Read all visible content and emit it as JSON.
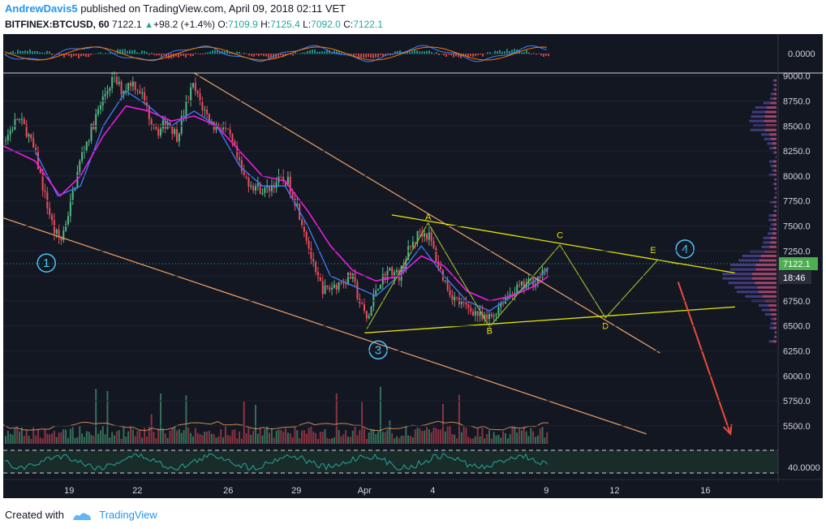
{
  "header": {
    "author": "AndrewDavis5",
    "published_text": " published on TradingView.com, April 09, 2018 02:11 VET",
    "symbol": "BITFINEX:BTCUSD, 60",
    "last": "7122.1",
    "change": "+98.2 (+1.4%)",
    "o_label": "O:",
    "o_value": "7109.9",
    "h_label": "H:",
    "h_value": "7125.4",
    "l_label": "L:",
    "l_value": "7092.0",
    "c_label": "C:",
    "c_value": "7122.1"
  },
  "footer": {
    "created_with": "Created with",
    "brand": "TradingView"
  },
  "colors": {
    "background": "#131722",
    "up": "#53b987",
    "down": "#eb4d5c",
    "ema_fast": "#3f7fff",
    "ema_slow": "#e91ee3",
    "channel": "#f0a468",
    "triangle": "#e6e600",
    "projection": "#9ab32e",
    "arrow": "#e74c3c",
    "volume_profile": "#7b68ee",
    "price_tag": "#4caf50"
  },
  "chart_data": {
    "type": "candlestick",
    "title": "",
    "symbol": "BITFINEX:BTCUSD",
    "interval": "60",
    "last_price": 7122.1,
    "last_price_label": "7122.1",
    "countdown_label": "18:46",
    "x_ticks": [
      "19",
      "22",
      "26",
      "29",
      "Apr",
      "4",
      "9",
      "12",
      "16"
    ],
    "x_tick_days": [
      19,
      22,
      26,
      29,
      32,
      35,
      40,
      43,
      47
    ],
    "y_ticks": [
      "9000.0",
      "8750.0",
      "8500.0",
      "8250.0",
      "8000.0",
      "7750.0",
      "7500.0",
      "7250.0",
      "7000.0",
      "6750.0",
      "6500.0",
      "6250.0",
      "6000.0",
      "5750.0",
      "5500.0"
    ],
    "y_tick_values": [
      9000,
      8750,
      8500,
      8250,
      8000,
      7750,
      7500,
      7250,
      7000,
      6750,
      6500,
      6250,
      6000,
      5750,
      5500
    ],
    "ylim": [
      5280,
      9030
    ],
    "xlim": [
      16.1,
      50.2
    ],
    "price_path": [
      [
        16.1,
        8350
      ],
      [
        16.7,
        8580
      ],
      [
        17.1,
        8450
      ],
      [
        17.5,
        8200
      ],
      [
        17.9,
        7800
      ],
      [
        18.3,
        7450
      ],
      [
        18.6,
        7350
      ],
      [
        19.0,
        7700
      ],
      [
        19.5,
        8200
      ],
      [
        20.0,
        8500
      ],
      [
        20.5,
        8800
      ],
      [
        20.9,
        8980
      ],
      [
        21.3,
        8850
      ],
      [
        21.7,
        8950
      ],
      [
        22.1,
        8850
      ],
      [
        22.5,
        8600
      ],
      [
        22.9,
        8450
      ],
      [
        23.3,
        8550
      ],
      [
        23.7,
        8400
      ],
      [
        24.1,
        8700
      ],
      [
        24.4,
        8900
      ],
      [
        24.8,
        8700
      ],
      [
        25.3,
        8500
      ],
      [
        25.7,
        8500
      ],
      [
        26.1,
        8350
      ],
      [
        26.6,
        8000
      ],
      [
        27.1,
        7900
      ],
      [
        27.6,
        7850
      ],
      [
        28.1,
        7950
      ],
      [
        28.6,
        7950
      ],
      [
        29.0,
        7700
      ],
      [
        29.4,
        7400
      ],
      [
        29.8,
        7000
      ],
      [
        30.2,
        6850
      ],
      [
        30.6,
        6900
      ],
      [
        31.0,
        6950
      ],
      [
        31.4,
        7000
      ],
      [
        31.8,
        6700
      ],
      [
        32.1,
        6550
      ],
      [
        32.5,
        6900
      ],
      [
        33.0,
        7050
      ],
      [
        33.5,
        7000
      ],
      [
        33.9,
        7250
      ],
      [
        34.4,
        7450
      ],
      [
        34.8,
        7400
      ],
      [
        35.3,
        7050
      ],
      [
        35.8,
        6800
      ],
      [
        36.3,
        6700
      ],
      [
        36.8,
        6650
      ],
      [
        37.2,
        6550
      ],
      [
        37.6,
        6600
      ],
      [
        38.0,
        6750
      ],
      [
        38.5,
        6850
      ],
      [
        39.0,
        6900
      ],
      [
        39.4,
        6950
      ],
      [
        39.7,
        7000
      ],
      [
        40.0,
        7050
      ],
      [
        40.1,
        7122.1
      ]
    ],
    "ema_fast": [
      [
        16.1,
        8250
      ],
      [
        17.5,
        8250
      ],
      [
        18.5,
        7800
      ],
      [
        19.5,
        7900
      ],
      [
        20.5,
        8500
      ],
      [
        21.5,
        8850
      ],
      [
        22.5,
        8700
      ],
      [
        23.5,
        8500
      ],
      [
        24.5,
        8650
      ],
      [
        25.5,
        8500
      ],
      [
        26.5,
        8100
      ],
      [
        27.5,
        7900
      ],
      [
        28.5,
        7900
      ],
      [
        29.5,
        7500
      ],
      [
        30.5,
        7000
      ],
      [
        31.5,
        6900
      ],
      [
        32.5,
        6800
      ],
      [
        33.5,
        7000
      ],
      [
        34.5,
        7300
      ],
      [
        35.5,
        7000
      ],
      [
        36.5,
        6750
      ],
      [
        37.5,
        6650
      ],
      [
        38.5,
        6800
      ],
      [
        39.5,
        6950
      ],
      [
        40.1,
        7080
      ]
    ],
    "ema_slow": [
      [
        16.1,
        8300
      ],
      [
        17.5,
        8150
      ],
      [
        18.6,
        7800
      ],
      [
        19.5,
        8000
      ],
      [
        20.5,
        8400
      ],
      [
        21.5,
        8700
      ],
      [
        22.5,
        8650
      ],
      [
        23.5,
        8550
      ],
      [
        24.5,
        8600
      ],
      [
        25.5,
        8500
      ],
      [
        26.5,
        8250
      ],
      [
        27.5,
        8000
      ],
      [
        28.5,
        7950
      ],
      [
        29.5,
        7650
      ],
      [
        30.5,
        7300
      ],
      [
        31.5,
        7050
      ],
      [
        32.5,
        6950
      ],
      [
        33.5,
        7000
      ],
      [
        34.5,
        7200
      ],
      [
        35.5,
        7100
      ],
      [
        36.5,
        6850
      ],
      [
        37.5,
        6750
      ],
      [
        38.5,
        6800
      ],
      [
        39.5,
        6900
      ],
      [
        40.1,
        7000
      ]
    ],
    "channel": {
      "upper": [
        [
          24.5,
          9030
        ],
        [
          45.0,
          6230
        ]
      ],
      "lower": [
        [
          16.1,
          7580
        ],
        [
          44.4,
          5420
        ]
      ]
    },
    "triangle": {
      "upper": [
        [
          33.2,
          7610
        ],
        [
          48.3,
          7030
        ]
      ],
      "lower": [
        [
          32.0,
          6430
        ],
        [
          48.3,
          6690
        ]
      ]
    },
    "wave_points": [
      {
        "label": "A",
        "x": 34.8,
        "y": 7560
      },
      {
        "label": "B",
        "x": 37.5,
        "y": 6420
      },
      {
        "label": "C",
        "x": 40.6,
        "y": 7380
      },
      {
        "label": "D",
        "x": 42.6,
        "y": 6470
      },
      {
        "label": "E",
        "x": 44.7,
        "y": 7230
      }
    ],
    "wave_path": [
      [
        32.1,
        6470
      ],
      [
        34.8,
        7530
      ],
      [
        37.5,
        6490
      ],
      [
        40.6,
        7310
      ],
      [
        42.6,
        6580
      ],
      [
        44.9,
        7160
      ],
      [
        45.8,
        7120
      ]
    ],
    "circled_labels": [
      {
        "label": "1",
        "x": 18.0,
        "y": 7130
      },
      {
        "label": "3",
        "x": 32.6,
        "y": 6260
      },
      {
        "label": "4",
        "x": 46.1,
        "y": 7270
      }
    ],
    "forecast_arrow": [
      [
        45.8,
        6940
      ],
      [
        48.1,
        5420
      ]
    ],
    "oscillator_top": {
      "label": "0.0000",
      "value": 0
    },
    "oscillator_bottom": {
      "label": "40.0000",
      "value": 40
    }
  }
}
